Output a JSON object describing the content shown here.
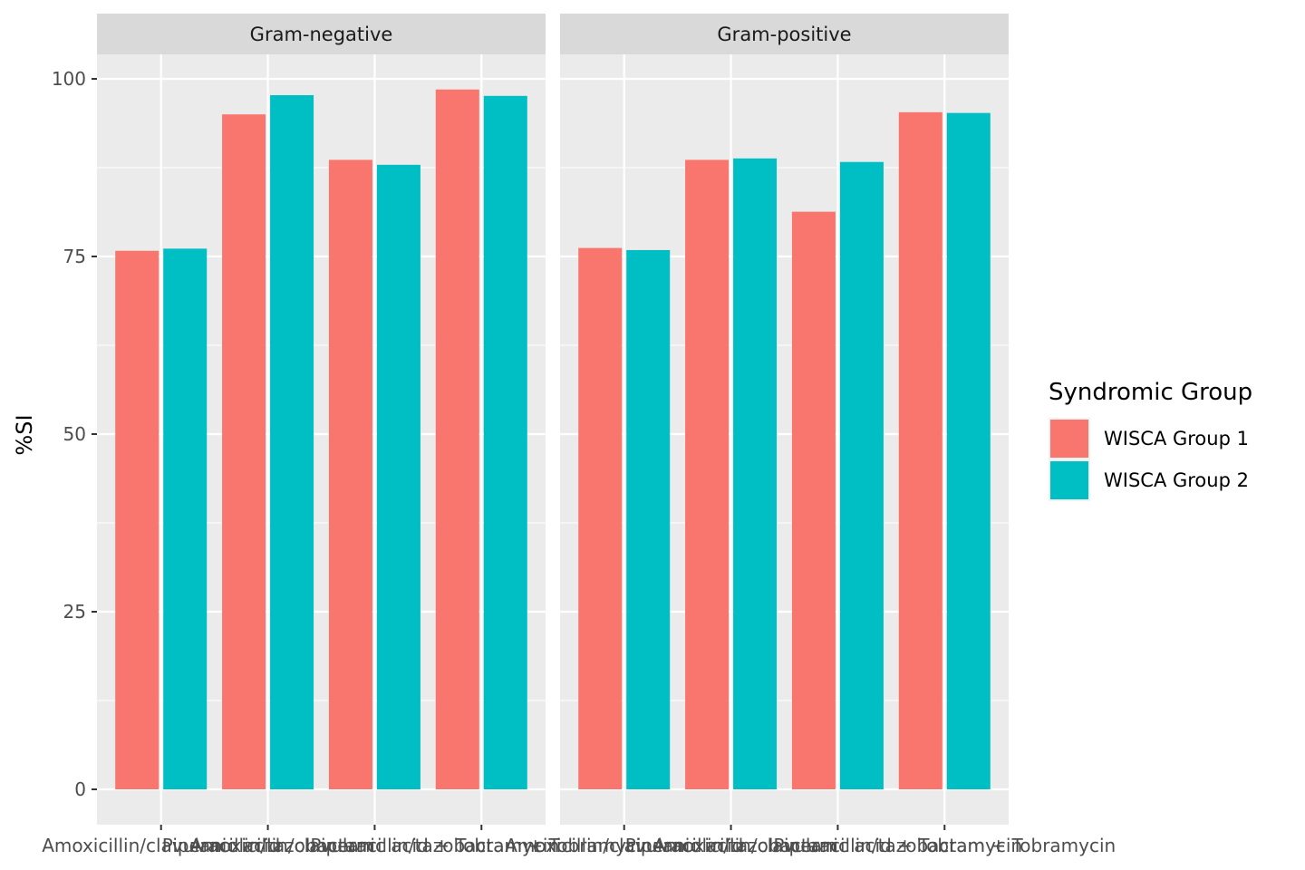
{
  "chart_data": {
    "type": "bar",
    "ylabel": "%SI",
    "xlabel": "",
    "ylim": [
      0,
      100
    ],
    "yticks": [
      0,
      25,
      50,
      75,
      100
    ],
    "grid": true,
    "legend_position": "right",
    "legend": {
      "title": "Syndromic Group",
      "entries": [
        {
          "name": "WISCA Group 1",
          "color": "#F8766D"
        },
        {
          "name": "WISCA Group 2",
          "color": "#00BFC4"
        }
      ]
    },
    "categories": [
      "Amoxicillin/clavulanic acid",
      "Piperacillin/tazobactam",
      "Amoxicillin/clavulanic acid + Tobramycin",
      "Piperacillin/tazobactam + Tobramycin"
    ],
    "panels": [
      {
        "title": "Gram-negative",
        "series": [
          {
            "name": "WISCA Group 1",
            "values": [
              75.8,
              95.0,
              88.6,
              98.5
            ]
          },
          {
            "name": "WISCA Group 2",
            "values": [
              76.1,
              97.7,
              87.9,
              97.6
            ]
          }
        ]
      },
      {
        "title": "Gram-positive",
        "series": [
          {
            "name": "WISCA Group 1",
            "values": [
              76.2,
              88.6,
              81.3,
              95.3
            ]
          },
          {
            "name": "WISCA Group 2",
            "values": [
              75.9,
              88.8,
              88.3,
              95.2
            ]
          }
        ]
      }
    ]
  }
}
